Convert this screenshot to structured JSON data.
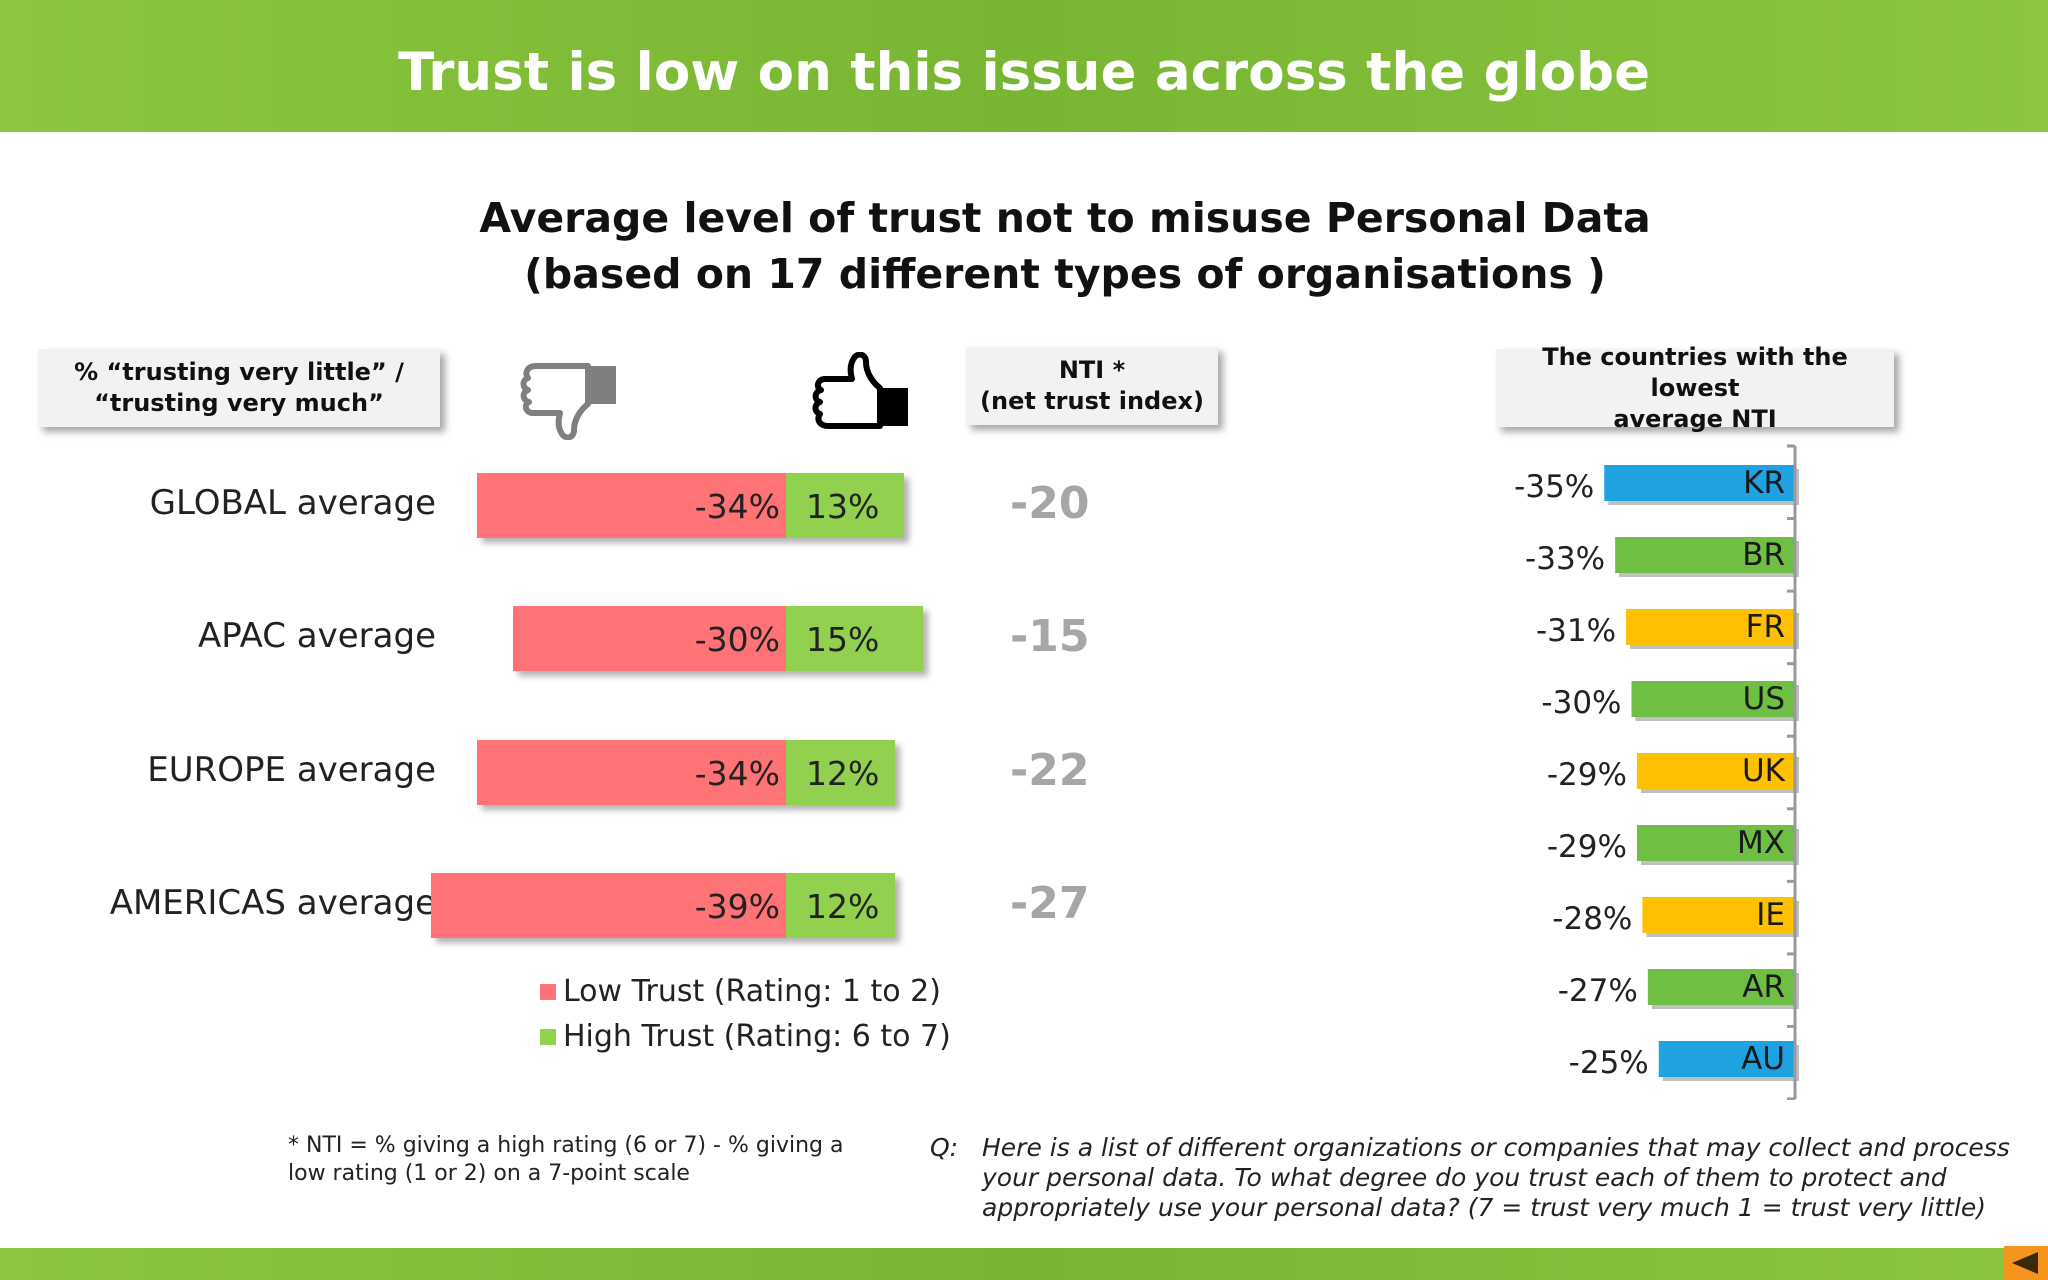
{
  "banner_title": "Trust is low on this issue across the globe",
  "chart_title_line1": "Average level of trust not to misuse Personal Data",
  "chart_title_line2": "(based on 17 different types of organisations )",
  "left_header_line1": "% “trusting very  little” /",
  "left_header_line2": "“trusting very much”",
  "nti_header_line1": "NTI *",
  "nti_header_line2": "(net trust index)",
  "right_header_line1": "The countries with the lowest",
  "right_header_line2": "average NTI",
  "icons": {
    "low": "thumbs-down-icon",
    "high": "thumbs-up-icon"
  },
  "colors": {
    "low_trust": "#ff7276",
    "high_trust": "#92d050",
    "blue": "#1fa2e0",
    "green": "#70bf45",
    "yellow": "#ffc000",
    "nti_text": "#a6a6a6",
    "banner": "#7db62f"
  },
  "chart_data": [
    {
      "type": "bar",
      "orientation": "horizontal-diverging",
      "categories": [
        "GLOBAL average",
        "APAC average",
        "EUROPE average",
        "AMERICAS average"
      ],
      "series": [
        {
          "name": "Low Trust (Rating: 1 to 2)",
          "values": [
            -34,
            -30,
            -34,
            -39
          ],
          "labels": [
            "-34%",
            "-30%",
            "-34%",
            "-39%"
          ],
          "color": "#ff7276"
        },
        {
          "name": "High Trust (Rating: 6 to 7)",
          "values": [
            13,
            15,
            12,
            12
          ],
          "labels": [
            "13%",
            "15%",
            "12%",
            "12%"
          ],
          "color": "#92d050"
        }
      ],
      "nti": [
        "-20",
        "-15",
        "-22",
        "-27"
      ],
      "legend": [
        "Low Trust (Rating: 1 to 2)",
        "High Trust (Rating: 6 to 7)"
      ]
    },
    {
      "type": "bar",
      "orientation": "horizontal",
      "categories": [
        "KR",
        "BR",
        "FR",
        "US",
        "UK",
        "MX",
        "IE",
        "AR",
        "AU"
      ],
      "values": [
        -35,
        -33,
        -31,
        -30,
        -29,
        -29,
        -28,
        -27,
        -25
      ],
      "labels": [
        "-35%",
        "-33%",
        "-31%",
        "-30%",
        "-29%",
        "-29%",
        "-28%",
        "-27%",
        "-25%"
      ],
      "colors": [
        "#1fa2e0",
        "#70bf45",
        "#ffc000",
        "#70bf45",
        "#ffc000",
        "#70bf45",
        "#ffc000",
        "#70bf45",
        "#1fa2e0"
      ]
    }
  ],
  "footnote_line1": "* NTI = % giving a high rating (6 or 7) - % giving a",
  "footnote_line2": "low rating (1 or 2) on a 7-point scale",
  "question_prefix": "Q:",
  "question_line1": "Here is a list of different organizations or companies that may collect and process",
  "question_line2": "your personal data.  To what degree do you trust each of them to protect and",
  "question_line3": "appropriately use your personal data? (7 = trust very much 1 = trust very little)"
}
